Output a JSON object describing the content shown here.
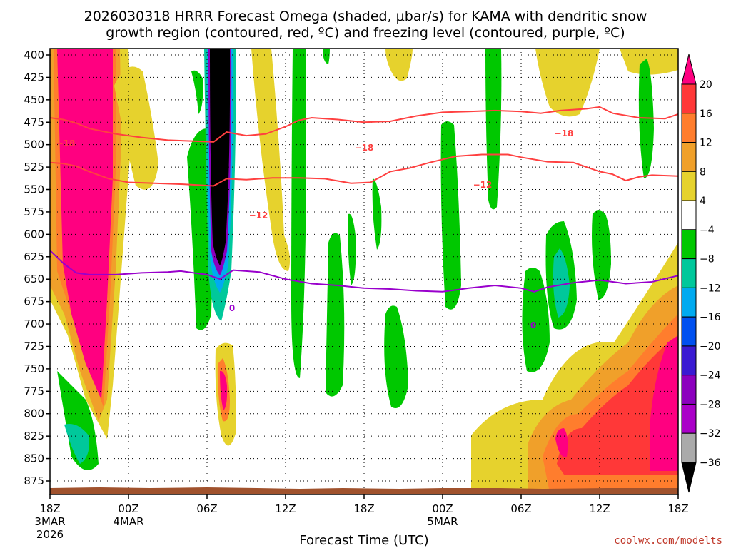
{
  "chart_data": {
    "type": "heatmap",
    "title_line1": "2026030318 HRRR Forecast Omega (shaded, μbar/s) for KAMA with dendritic snow",
    "title_line2": "growth region (contoured, red, ºC) and freezing level (contoured, purple, ºC)",
    "xlabel": "Forecast Time (UTC)",
    "credit": "coolwx.com/modelts",
    "y_ticks": [
      "400",
      "425",
      "450",
      "475",
      "500",
      "525",
      "550",
      "575",
      "600",
      "625",
      "650",
      "675",
      "700",
      "725",
      "750",
      "775",
      "800",
      "825",
      "850",
      "875"
    ],
    "ylim": [
      400,
      875
    ],
    "x_ticks": [
      {
        "hour": 0,
        "label": "18Z",
        "sub1": "3MAR",
        "sub2": "2026"
      },
      {
        "hour": 6,
        "label": "00Z",
        "sub1": "4MAR",
        "sub2": ""
      },
      {
        "hour": 12,
        "label": "06Z",
        "sub1": "",
        "sub2": ""
      },
      {
        "hour": 18,
        "label": "12Z",
        "sub1": "",
        "sub2": ""
      },
      {
        "hour": 24,
        "label": "18Z",
        "sub1": "",
        "sub2": ""
      },
      {
        "hour": 30,
        "label": "00Z",
        "sub1": "5MAR",
        "sub2": ""
      },
      {
        "hour": 36,
        "label": "06Z",
        "sub1": "",
        "sub2": ""
      },
      {
        "hour": 42,
        "label": "12Z",
        "sub1": "",
        "sub2": ""
      },
      {
        "hour": 48,
        "label": "18Z",
        "sub1": "",
        "sub2": ""
      }
    ],
    "xlim": [
      0,
      48
    ],
    "colorbar": {
      "levels": [
        "20",
        "16",
        "12",
        "8",
        "4",
        "−4",
        "−8",
        "−12",
        "−16",
        "−20",
        "−24",
        "−28",
        "−32",
        "−36"
      ],
      "colors": [
        "#ff0080",
        "#ff3838",
        "#ff7d2d",
        "#f0a02a",
        "#e6d22d",
        "#ffffff",
        "#00c800",
        "#00c89b",
        "#00aaf0",
        "#0050f0",
        "#3a1ad2",
        "#8c00be",
        "#aa00c8",
        "#aaaaaa",
        "#000000"
      ]
    },
    "contour_labels": [
      {
        "text": "−18",
        "color": "#ff4040"
      },
      {
        "text": "−18",
        "color": "#ff4040"
      },
      {
        "text": "−12",
        "color": "#ff4040"
      },
      {
        "text": "−12",
        "color": "#ff4040"
      },
      {
        "text": "−18",
        "color": "#ff4040"
      },
      {
        "text": "0",
        "color": "#9900cc"
      },
      {
        "text": "0",
        "color": "#9900cc"
      }
    ],
    "dgz_upper": [
      [
        0,
        470
      ],
      [
        1,
        472
      ],
      [
        2,
        476
      ],
      [
        3,
        482
      ],
      [
        5,
        488
      ],
      [
        7,
        492
      ],
      [
        9,
        495
      ],
      [
        11,
        496
      ],
      [
        12.5,
        497
      ],
      [
        13.5,
        486
      ],
      [
        15,
        490
      ],
      [
        16.5,
        488
      ],
      [
        18,
        480
      ],
      [
        19,
        473
      ],
      [
        20,
        470
      ],
      [
        22,
        472
      ],
      [
        24,
        475
      ],
      [
        26,
        474
      ],
      [
        28,
        468
      ],
      [
        30,
        464
      ],
      [
        32,
        463
      ],
      [
        34,
        462
      ],
      [
        36,
        463
      ],
      [
        37.5,
        465
      ],
      [
        39,
        462
      ],
      [
        41,
        460
      ],
      [
        42,
        458
      ],
      [
        43,
        465
      ],
      [
        45,
        470
      ],
      [
        47,
        471
      ],
      [
        48,
        466
      ]
    ],
    "dgz_lower": [
      [
        0,
        520
      ],
      [
        1,
        521
      ],
      [
        2,
        524
      ],
      [
        3,
        530
      ],
      [
        4.5,
        538
      ],
      [
        6,
        542
      ],
      [
        8,
        543
      ],
      [
        10,
        544
      ],
      [
        12.5,
        546
      ],
      [
        13.5,
        538
      ],
      [
        15,
        539
      ],
      [
        17,
        537
      ],
      [
        19,
        537
      ],
      [
        21,
        538
      ],
      [
        23,
        543
      ],
      [
        24.5,
        542
      ],
      [
        26,
        530
      ],
      [
        27.5,
        526
      ],
      [
        29,
        520
      ],
      [
        31,
        513
      ],
      [
        33,
        511
      ],
      [
        35,
        511
      ],
      [
        36,
        514
      ],
      [
        38,
        519
      ],
      [
        40,
        520
      ],
      [
        42,
        530
      ],
      [
        43,
        533
      ],
      [
        44,
        540
      ],
      [
        45,
        536
      ],
      [
        46,
        534
      ],
      [
        48,
        535
      ]
    ],
    "freezing_level": [
      [
        0,
        618
      ],
      [
        1,
        632
      ],
      [
        2,
        643
      ],
      [
        3,
        645
      ],
      [
        5,
        645
      ],
      [
        7,
        643
      ],
      [
        9,
        642
      ],
      [
        10,
        641
      ],
      [
        12,
        645
      ],
      [
        13,
        650
      ],
      [
        14,
        640
      ],
      [
        16,
        642
      ],
      [
        18,
        650
      ],
      [
        20,
        655
      ],
      [
        22,
        657
      ],
      [
        24,
        660
      ],
      [
        26,
        661
      ],
      [
        28,
        663
      ],
      [
        30,
        664
      ],
      [
        32,
        660
      ],
      [
        34,
        657
      ],
      [
        36,
        660
      ],
      [
        37,
        664
      ],
      [
        38,
        659
      ],
      [
        40,
        654
      ],
      [
        42,
        651
      ],
      [
        44,
        655
      ],
      [
        46,
        653
      ],
      [
        48,
        646
      ]
    ]
  }
}
